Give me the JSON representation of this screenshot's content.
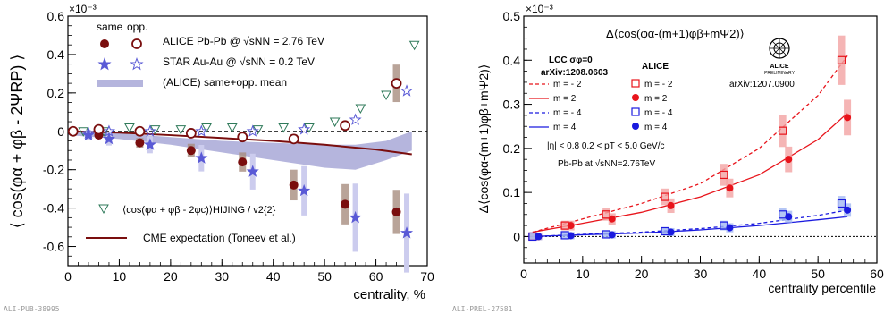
{
  "left_footer": "ALI-PUB-38995",
  "right_footer": "ALI-PREL-27581",
  "chart_data": [
    {
      "type": "scatter",
      "ylabel": "⟨ cos(φα + φβ - 2ΨRP) ⟩",
      "xlabel": "centrality, %",
      "exponent": "×10⁻³",
      "xlim": [
        0,
        70
      ],
      "ylim": [
        -0.7,
        0.6
      ],
      "x_ticks": [
        0,
        10,
        20,
        30,
        40,
        50,
        60,
        70
      ],
      "y_ticks": [
        -0.6,
        -0.4,
        -0.2,
        0,
        0.2,
        0.4,
        0.6
      ],
      "legend": {
        "same": "same",
        "opp": "opp.",
        "alice": "ALICE Pb-Pb @ √sNN = 2.76 TeV",
        "star": "STAR Au-Au @ √sNN = 0.2 TeV",
        "band": "(ALICE) same+opp. mean",
        "hijing": "⟨cos(φα + φβ - 2φc)⟩HIJING / v2{2}",
        "cme": "CME expectation (Toneev et al.)"
      },
      "colors": {
        "alice": "#7a0e0e",
        "star": "#5a5ad6",
        "band": "#b5b5dd",
        "hijing": "#2f7a5a",
        "cme": "#7a0e0e",
        "sys": "#a88d80"
      },
      "series": [
        {
          "name": "ALICE same",
          "x": [
            1,
            6,
            14,
            24,
            34,
            44,
            54,
            64
          ],
          "y": [
            0,
            -0.02,
            -0.06,
            -0.1,
            -0.16,
            -0.28,
            -0.38,
            -0.42
          ]
        },
        {
          "name": "ALICE opp.",
          "x": [
            1,
            6,
            14,
            24,
            34,
            44,
            54,
            64
          ],
          "y": [
            0,
            0.01,
            0,
            -0.01,
            -0.03,
            -0.04,
            0.03,
            0.25
          ]
        },
        {
          "name": "STAR same",
          "x": [
            4,
            8,
            16,
            26,
            36,
            46,
            56,
            66
          ],
          "y": [
            -0.02,
            -0.04,
            -0.07,
            -0.14,
            -0.21,
            -0.31,
            -0.45,
            -0.53
          ]
        },
        {
          "name": "STAR opp.",
          "x": [
            4,
            8,
            16,
            26,
            36,
            46,
            56,
            66
          ],
          "y": [
            -0.01,
            0,
            0,
            0,
            0,
            0.01,
            0.06,
            0.21
          ]
        },
        {
          "name": "HIJING",
          "x": [
            3,
            7,
            12,
            17,
            22,
            27,
            32,
            37,
            42,
            47,
            52,
            57,
            62,
            67.5
          ],
          "y": [
            0,
            0,
            0.02,
            0.01,
            0.01,
            0.02,
            0.02,
            0.01,
            0.02,
            0.02,
            0.05,
            0.12,
            0.19,
            0.45
          ]
        },
        {
          "name": "CME",
          "x": [
            0,
            5,
            10,
            20,
            30,
            40,
            50,
            60,
            67
          ],
          "y": [
            0,
            -0.003,
            -0.007,
            -0.02,
            -0.035,
            -0.05,
            -0.07,
            -0.095,
            -0.12
          ]
        },
        {
          "name": "mean band upper",
          "x": [
            0,
            10,
            20,
            30,
            40,
            50,
            56,
            62,
            67
          ],
          "y": [
            0,
            -0.01,
            -0.03,
            -0.05,
            -0.06,
            -0.07,
            -0.07,
            -0.05,
            0
          ]
        },
        {
          "name": "mean band lower",
          "x": [
            0,
            10,
            20,
            30,
            40,
            50,
            56,
            62,
            67
          ],
          "y": [
            -0.02,
            -0.04,
            -0.07,
            -0.11,
            -0.15,
            -0.19,
            -0.2,
            -0.15,
            -0.1
          ]
        }
      ]
    },
    {
      "type": "line",
      "ylabel": "Δ⟨cos(φα-(m+1)φβ+mΨ2)⟩",
      "xlabel": "centrality percentile",
      "exponent": "×10⁻³",
      "xlim": [
        0,
        60
      ],
      "ylim": [
        -0.06,
        0.5
      ],
      "x_ticks": [
        0,
        10,
        20,
        30,
        40,
        50,
        60
      ],
      "y_ticks": [
        0,
        0.1,
        0.2,
        0.3,
        0.4,
        0.5
      ],
      "texts": {
        "title": "Δ⟨cos(φα-(m+1)φβ+mΨ2)⟩",
        "lcc": "LCC  σφ=0",
        "arxiv1": "arXiv:1208.0603",
        "alice": "ALICE",
        "arxiv2": "arXiv:1207.0900",
        "m_minus2": "m = - 2",
        "m_2": "m = 2",
        "m_minus4": "m = - 4",
        "m_4": "m = 4",
        "eta": "|η| < 0.8   0.2 < pT < 5.0 GeV/c",
        "pbpb": "Pb-Pb at √sNN=2.76TeV",
        "logo": "ALICE",
        "logo_sub": "PRELIMINARY"
      },
      "colors": {
        "red": "#e8141b",
        "blue": "#1a1adf",
        "red_sys": "#f2a3a3",
        "blue_sys": "#a3b8f2"
      },
      "series": [
        {
          "name": "m = - 2",
          "x": [
            1.5,
            7,
            14,
            24,
            34,
            44,
            54
          ],
          "y": [
            0,
            0.025,
            0.05,
            0.09,
            0.14,
            0.24,
            0.4
          ]
        },
        {
          "name": "m = 2",
          "x": [
            2.5,
            8,
            15,
            25,
            35,
            45,
            55
          ],
          "y": [
            0,
            0.025,
            0.04,
            0.07,
            0.11,
            0.175,
            0.27
          ]
        },
        {
          "name": "m = - 4",
          "x": [
            1.5,
            7,
            14,
            24,
            34,
            44,
            54
          ],
          "y": [
            0,
            0.003,
            0.005,
            0.012,
            0.025,
            0.05,
            0.075
          ]
        },
        {
          "name": "m = 4",
          "x": [
            2.5,
            8,
            15,
            25,
            35,
            45,
            55
          ],
          "y": [
            0,
            0.002,
            0.004,
            0.01,
            0.02,
            0.045,
            0.06
          ]
        },
        {
          "name": "LCC m = - 2",
          "x": [
            1.5,
            10,
            20,
            30,
            40,
            50,
            55
          ],
          "y": [
            0.01,
            0.04,
            0.075,
            0.12,
            0.2,
            0.32,
            0.41
          ]
        },
        {
          "name": "LCC m = 2",
          "x": [
            1.5,
            10,
            20,
            30,
            40,
            50,
            55
          ],
          "y": [
            0.01,
            0.03,
            0.055,
            0.09,
            0.14,
            0.22,
            0.28
          ]
        },
        {
          "name": "LCC m = - 4",
          "x": [
            1.5,
            10,
            20,
            30,
            40,
            50,
            55
          ],
          "y": [
            0,
            0.005,
            0.01,
            0.018,
            0.03,
            0.048,
            0.06
          ]
        },
        {
          "name": "LCC m = 4",
          "x": [
            1.5,
            10,
            20,
            30,
            40,
            50,
            55
          ],
          "y": [
            0,
            0.004,
            0.008,
            0.015,
            0.025,
            0.038,
            0.045
          ]
        }
      ]
    }
  ]
}
